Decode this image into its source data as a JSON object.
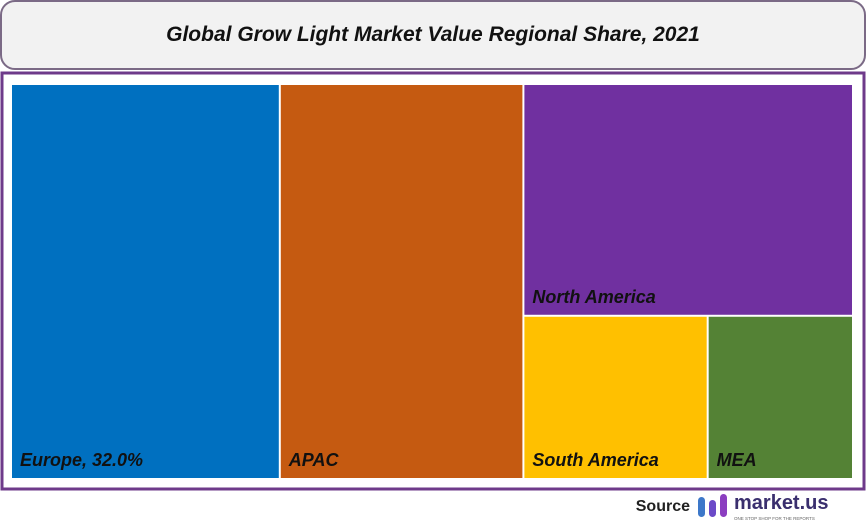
{
  "chart_data": {
    "type": "treemap",
    "title": "Global Grow Light Market Value Regional Share, 2021",
    "categories": [
      "Europe",
      "APAC",
      "North America",
      "South America",
      "MEA"
    ],
    "values": [
      32,
      29,
      23,
      9,
      7
    ],
    "value_labels": [
      "Europe, 32.0%",
      null,
      null,
      null,
      null
    ],
    "colors": [
      "#0070c0",
      "#c55a11",
      "#7030a0",
      "#ffc000",
      "#548235"
    ]
  },
  "source": {
    "label": "Source",
    "brand": "market.us",
    "tagline": "ONE STOP SHOP FOR THE REPORTS"
  }
}
